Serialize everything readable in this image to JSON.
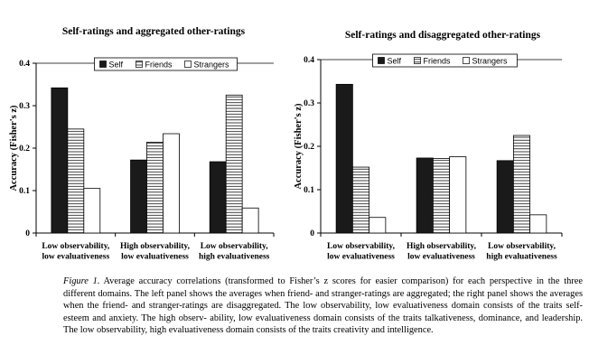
{
  "colors": {
    "self": "#1a1a1a",
    "friends": "#ffffff",
    "strangers": "#ffffff",
    "axis": "#000000"
  },
  "chart_data": [
    {
      "type": "bar",
      "title": "Self-ratings and aggregated other-ratings",
      "ylabel": "Accuracy (Fisher's z)",
      "ylim": [
        0,
        0.4
      ],
      "yticks": [
        "0",
        "0.1",
        "0.2",
        "0.3",
        "0.4"
      ],
      "categories": [
        [
          "Low observability,",
          "low evaluativeness"
        ],
        [
          "High observability,",
          "low evaluativeness"
        ],
        [
          "Low observability,",
          "high evaluativeness"
        ]
      ],
      "series": [
        {
          "name": "Self",
          "pattern": "solid",
          "values": [
            0.342,
            0.172,
            0.168
          ]
        },
        {
          "name": "Friends",
          "pattern": "lines",
          "values": [
            0.245,
            0.214,
            0.325
          ]
        },
        {
          "name": "Strangers",
          "pattern": "empty",
          "values": [
            0.105,
            0.234,
            0.059
          ]
        }
      ],
      "legend": "top",
      "grid": false
    },
    {
      "type": "bar",
      "title": "Self-ratings and disaggregated other-ratings",
      "ylabel": "Accuracy (Fisher's z)",
      "ylim": [
        0,
        0.4
      ],
      "yticks": [
        "0",
        "0.1",
        "0.2",
        "0.3",
        "0.4"
      ],
      "categories": [
        [
          "Low observability,",
          "low evaluativeness"
        ],
        [
          "High observability,",
          "low evaluativeness"
        ],
        [
          "Low observability,",
          "high evaluativeness"
        ]
      ],
      "series": [
        {
          "name": "Self",
          "pattern": "solid",
          "values": [
            0.343,
            0.173,
            0.167
          ]
        },
        {
          "name": "Friends",
          "pattern": "lines",
          "values": [
            0.152,
            0.172,
            0.225
          ]
        },
        {
          "name": "Strangers",
          "pattern": "empty",
          "values": [
            0.036,
            0.176,
            0.042
          ]
        }
      ],
      "legend": "top",
      "grid": false
    }
  ],
  "caption": {
    "label": "Figure 1.",
    "lines": [
      "Average accuracy correlations (transformed to Fisher’s z scores for easier comparison) for each",
      "perspective in the three different domains. The left panel shows the averages when friend- and stranger-ratings",
      "are aggregated; the right panel shows the averages when the friend- and stranger-ratings are disaggregated. The",
      "low observability, low evaluativeness domain consists of the traits self-esteem and anxiety. The high observ-",
      "ability, low evaluativeness domain consists of the traits talkativeness, dominance, and leadership. The low",
      "observability, high evaluativeness domain consists of the traits creativity and intelligence."
    ]
  }
}
